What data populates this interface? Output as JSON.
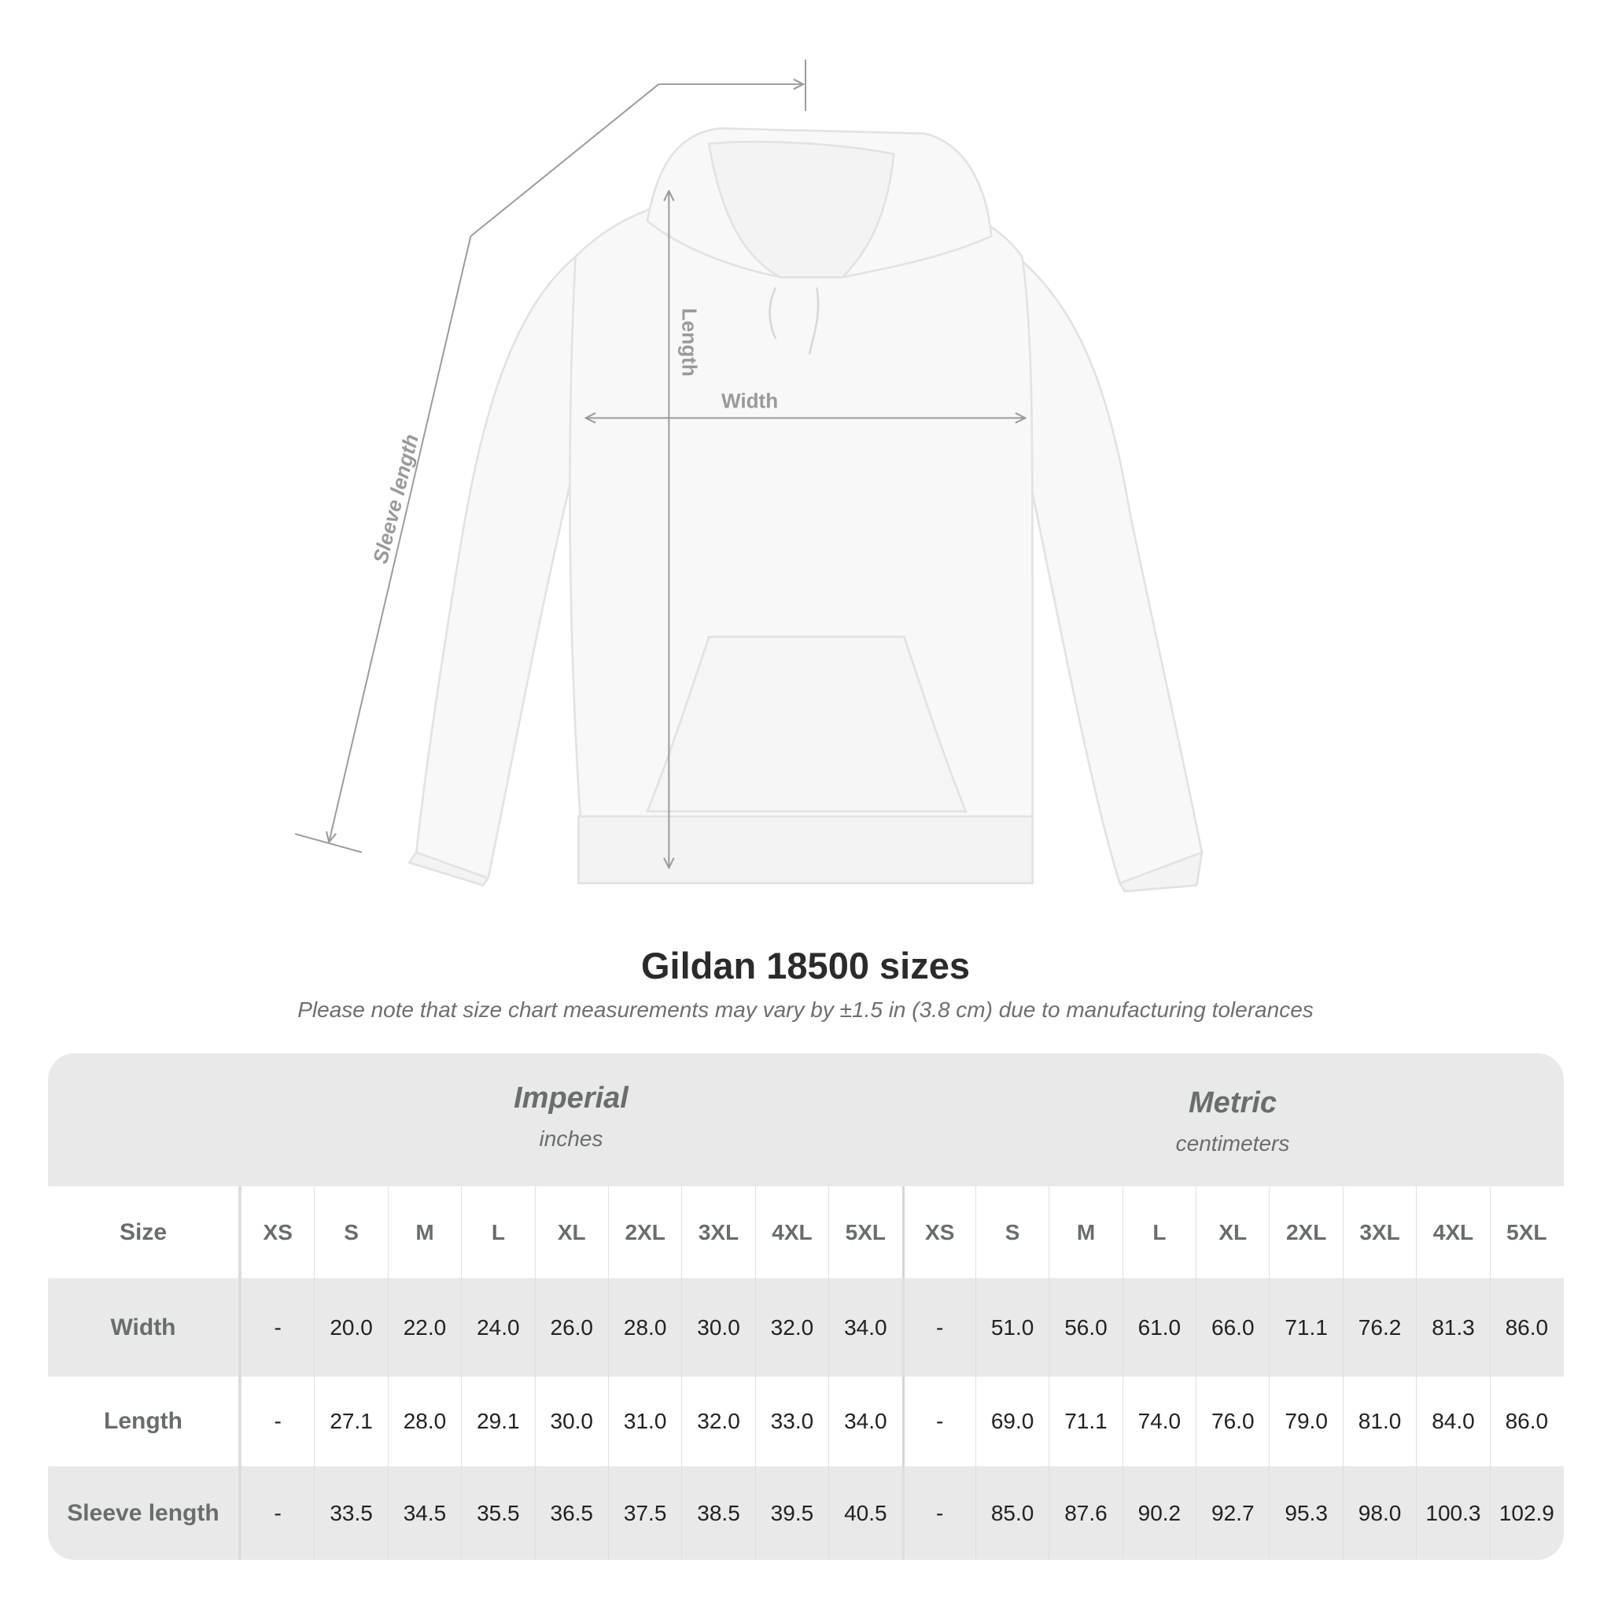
{
  "diagram": {
    "labels": {
      "sleeve": "Sleeve length",
      "length": "Length",
      "width": "Width"
    },
    "colors": {
      "garment": "#f8f8f8",
      "measure_line": "#9a9a9a"
    }
  },
  "title": "Gildan 18500 sizes",
  "note": "Please note that size chart measurements may vary by ±1.5 in (3.8 cm) due to manufacturing tolerances",
  "table": {
    "imperial": {
      "name": "Imperial",
      "unit": "inches"
    },
    "metric": {
      "name": "Metric",
      "unit": "centimeters"
    },
    "size_label": "Size",
    "sizes": [
      "XS",
      "S",
      "M",
      "L",
      "XL",
      "2XL",
      "3XL",
      "4XL",
      "5XL"
    ],
    "rows": [
      {
        "label": "Width",
        "imperial": [
          "-",
          "20.0",
          "22.0",
          "24.0",
          "26.0",
          "28.0",
          "30.0",
          "32.0",
          "34.0"
        ],
        "metric": [
          "-",
          "51.0",
          "56.0",
          "61.0",
          "66.0",
          "71.1",
          "76.2",
          "81.3",
          "86.0"
        ]
      },
      {
        "label": "Length",
        "imperial": [
          "-",
          "27.1",
          "28.0",
          "29.1",
          "30.0",
          "31.0",
          "32.0",
          "33.0",
          "34.0"
        ],
        "metric": [
          "-",
          "69.0",
          "71.1",
          "74.0",
          "76.0",
          "79.0",
          "81.0",
          "84.0",
          "86.0"
        ]
      },
      {
        "label": "Sleeve length",
        "imperial": [
          "-",
          "33.5",
          "34.5",
          "35.5",
          "36.5",
          "37.5",
          "38.5",
          "39.5",
          "40.5"
        ],
        "metric": [
          "-",
          "85.0",
          "87.6",
          "90.2",
          "92.7",
          "95.3",
          "98.0",
          "100.3",
          "102.9"
        ]
      }
    ]
  }
}
